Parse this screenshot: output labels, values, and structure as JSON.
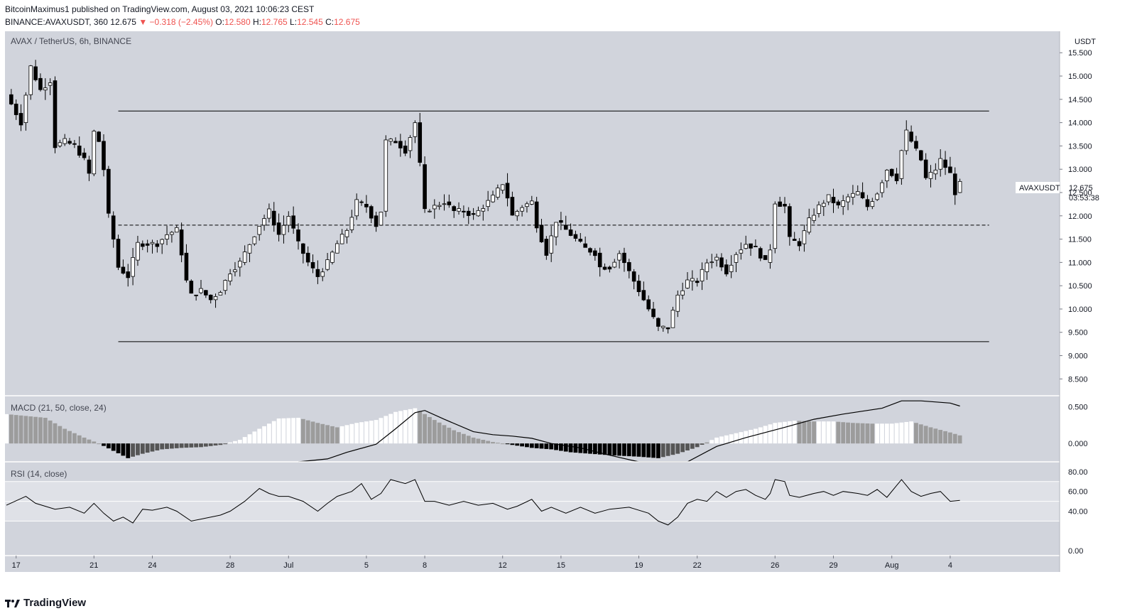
{
  "header": {
    "author": "BitcoinMaximus1",
    "published": "published on TradingView.com, August 03, 2021 10:06:23 CEST",
    "symbol": "BINANCE:AVAXUSDT, 360",
    "last": "12.675",
    "change": "▼ −0.318 (−2.45%)",
    "o_label": "O:",
    "o": "12.580",
    "h_label": "H:",
    "h": "12.765",
    "l_label": "L:",
    "l": "12.545",
    "c_label": "C:",
    "c": "12.675"
  },
  "footer": {
    "brand": "TradingView",
    "logo_icon": "tradingview-logo-icon"
  },
  "colors": {
    "background": "#d1d4dc",
    "candle_up": "#ffffff",
    "candle_down": "#000000",
    "line": "#000000",
    "hist_gray": "#9c9c9c",
    "hist_dark": "#555555"
  },
  "chart_data": {
    "type": "candlestick",
    "title": "AVAX / TetherUS, 6h, BINANCE",
    "currency": "USDT",
    "ylim": [
      8.2,
      15.9
    ],
    "yticks": [
      "15.500",
      "15.000",
      "14.500",
      "14.000",
      "13.500",
      "13.000",
      "12.500",
      "12.000",
      "11.500",
      "11.000",
      "10.500",
      "10.000",
      "9.500",
      "9.000",
      "8.500"
    ],
    "price_label": {
      "name": "AVAXUSDT",
      "value": "12.675",
      "countdown": "03:53:38"
    },
    "xticks": [
      {
        "label": "17",
        "t": 2
      },
      {
        "label": "21",
        "t": 18
      },
      {
        "label": "24",
        "t": 30
      },
      {
        "label": "28",
        "t": 46
      },
      {
        "label": "Jul",
        "t": 58
      },
      {
        "label": "5",
        "t": 74
      },
      {
        "label": "8",
        "t": 86
      },
      {
        "label": "12",
        "t": 102
      },
      {
        "label": "15",
        "t": 114
      },
      {
        "label": "19",
        "t": 130
      },
      {
        "label": "22",
        "t": 142
      },
      {
        "label": "26",
        "t": 158
      },
      {
        "label": "29",
        "t": 170
      },
      {
        "label": "Aug",
        "t": 182
      },
      {
        "label": "4",
        "t": 194
      }
    ],
    "levels": [
      {
        "name": "range-high",
        "value": 14.25,
        "style": "solid",
        "t0": 23,
        "t1": 202
      },
      {
        "name": "mid-range",
        "value": 11.8,
        "style": "dashed",
        "t0": 23,
        "t1": 202
      },
      {
        "name": "range-low",
        "value": 9.3,
        "style": "solid",
        "t0": 23,
        "t1": 202
      }
    ],
    "anchors": [
      [
        0,
        14.6
      ],
      [
        3,
        14.0
      ],
      [
        5,
        15.2
      ],
      [
        7,
        14.7
      ],
      [
        9,
        14.9
      ],
      [
        10,
        13.5
      ],
      [
        12,
        13.6
      ],
      [
        14,
        13.5
      ],
      [
        16,
        13.2
      ],
      [
        17,
        12.9
      ],
      [
        18,
        13.8
      ],
      [
        19,
        13.6
      ],
      [
        20,
        13.0
      ],
      [
        21,
        12.0
      ],
      [
        22,
        11.5
      ],
      [
        23,
        10.9
      ],
      [
        24,
        10.8
      ],
      [
        25,
        10.7
      ],
      [
        27,
        11.4
      ],
      [
        29,
        11.4
      ],
      [
        31,
        11.4
      ],
      [
        33,
        11.6
      ],
      [
        35,
        11.7
      ],
      [
        36,
        11.2
      ],
      [
        37,
        10.6
      ],
      [
        38,
        10.3
      ],
      [
        40,
        10.4
      ],
      [
        42,
        10.2
      ],
      [
        44,
        10.4
      ],
      [
        46,
        10.8
      ],
      [
        48,
        11.0
      ],
      [
        50,
        11.4
      ],
      [
        52,
        11.8
      ],
      [
        54,
        12.1
      ],
      [
        56,
        11.6
      ],
      [
        58,
        12.0
      ],
      [
        60,
        11.4
      ],
      [
        62,
        11.0
      ],
      [
        64,
        10.7
      ],
      [
        66,
        11.0
      ],
      [
        68,
        11.4
      ],
      [
        70,
        11.7
      ],
      [
        72,
        12.3
      ],
      [
        74,
        12.2
      ],
      [
        76,
        11.8
      ],
      [
        77,
        12.1
      ],
      [
        78,
        13.6
      ],
      [
        80,
        13.6
      ],
      [
        82,
        13.4
      ],
      [
        84,
        14.0
      ],
      [
        85,
        13.1
      ],
      [
        86,
        12.1
      ],
      [
        88,
        12.2
      ],
      [
        90,
        12.3
      ],
      [
        92,
        12.1
      ],
      [
        94,
        12.1
      ],
      [
        96,
        12.0
      ],
      [
        98,
        12.2
      ],
      [
        100,
        12.4
      ],
      [
        102,
        12.7
      ],
      [
        103,
        12.4
      ],
      [
        104,
        12.0
      ],
      [
        106,
        12.2
      ],
      [
        108,
        12.3
      ],
      [
        109,
        11.8
      ],
      [
        111,
        11.2
      ],
      [
        113,
        11.9
      ],
      [
        115,
        11.7
      ],
      [
        117,
        11.5
      ],
      [
        119,
        11.3
      ],
      [
        121,
        11.2
      ],
      [
        122,
        10.9
      ],
      [
        124,
        10.9
      ],
      [
        126,
        11.2
      ],
      [
        128,
        10.8
      ],
      [
        130,
        10.4
      ],
      [
        132,
        10.0
      ],
      [
        134,
        9.6
      ],
      [
        136,
        9.6
      ],
      [
        138,
        10.3
      ],
      [
        140,
        10.6
      ],
      [
        142,
        10.6
      ],
      [
        144,
        11.0
      ],
      [
        146,
        11.1
      ],
      [
        148,
        10.8
      ],
      [
        150,
        11.2
      ],
      [
        152,
        11.4
      ],
      [
        154,
        11.3
      ],
      [
        156,
        11.0
      ],
      [
        157,
        11.3
      ],
      [
        158,
        12.3
      ],
      [
        160,
        12.2
      ],
      [
        161,
        11.5
      ],
      [
        163,
        11.4
      ],
      [
        165,
        11.9
      ],
      [
        167,
        12.2
      ],
      [
        169,
        12.4
      ],
      [
        171,
        12.2
      ],
      [
        173,
        12.4
      ],
      [
        175,
        12.5
      ],
      [
        177,
        12.2
      ],
      [
        179,
        12.5
      ],
      [
        181,
        13.0
      ],
      [
        183,
        12.8
      ],
      [
        184,
        13.4
      ],
      [
        185,
        13.8
      ],
      [
        187,
        13.4
      ],
      [
        188,
        13.2
      ],
      [
        189,
        12.8
      ],
      [
        191,
        13.0
      ],
      [
        192,
        13.2
      ],
      [
        194,
        12.9
      ],
      [
        195,
        12.5
      ],
      [
        196,
        12.68
      ]
    ],
    "macd": {
      "label": "MACD (21, 50, close, 24)",
      "ylim": [
        -0.25,
        0.65
      ],
      "yticks": [
        "0.500",
        "0.000"
      ],
      "histogram_anchors": [
        [
          0,
          0.4
        ],
        [
          8,
          0.35
        ],
        [
          12,
          0.2
        ],
        [
          16,
          0.08
        ],
        [
          19,
          0.0
        ],
        [
          22,
          -0.1
        ],
        [
          25,
          -0.2
        ],
        [
          28,
          -0.14
        ],
        [
          32,
          -0.08
        ],
        [
          36,
          -0.06
        ],
        [
          40,
          -0.05
        ],
        [
          44,
          -0.02
        ],
        [
          48,
          0.05
        ],
        [
          52,
          0.2
        ],
        [
          56,
          0.34
        ],
        [
          60,
          0.35
        ],
        [
          64,
          0.28
        ],
        [
          68,
          0.22
        ],
        [
          72,
          0.28
        ],
        [
          76,
          0.32
        ],
        [
          80,
          0.43
        ],
        [
          84,
          0.48
        ],
        [
          88,
          0.32
        ],
        [
          92,
          0.18
        ],
        [
          96,
          0.08
        ],
        [
          100,
          0.02
        ],
        [
          104,
          -0.02
        ],
        [
          108,
          -0.06
        ],
        [
          112,
          -0.08
        ],
        [
          116,
          -0.12
        ],
        [
          120,
          -0.14
        ],
        [
          124,
          -0.16
        ],
        [
          130,
          -0.18
        ],
        [
          134,
          -0.2
        ],
        [
          138,
          -0.14
        ],
        [
          142,
          -0.05
        ],
        [
          146,
          0.08
        ],
        [
          150,
          0.14
        ],
        [
          154,
          0.2
        ],
        [
          158,
          0.28
        ],
        [
          162,
          0.31
        ],
        [
          166,
          0.3
        ],
        [
          170,
          0.3
        ],
        [
          174,
          0.28
        ],
        [
          178,
          0.27
        ],
        [
          182,
          0.27
        ],
        [
          186,
          0.3
        ],
        [
          190,
          0.22
        ],
        [
          194,
          0.15
        ],
        [
          196,
          0.11
        ]
      ],
      "macd_anchors": [
        [
          60,
          -0.28
        ],
        [
          66,
          -0.21
        ],
        [
          70,
          -0.12
        ],
        [
          76,
          -0.01
        ],
        [
          80,
          0.2
        ],
        [
          84,
          0.42
        ],
        [
          86,
          0.45
        ],
        [
          90,
          0.33
        ],
        [
          96,
          0.16
        ],
        [
          100,
          0.12
        ],
        [
          104,
          0.1
        ],
        [
          108,
          0.07
        ],
        [
          112,
          0.0
        ],
        [
          118,
          -0.06
        ],
        [
          124,
          -0.16
        ],
        [
          130,
          -0.26
        ],
        [
          132,
          -0.3
        ],
        [
          140,
          -0.34
        ],
        [
          146,
          -0.04
        ],
        [
          152,
          0.08
        ],
        [
          160,
          0.22
        ],
        [
          166,
          0.33
        ],
        [
          172,
          0.4
        ],
        [
          180,
          0.48
        ],
        [
          184,
          0.58
        ],
        [
          188,
          0.58
        ],
        [
          194,
          0.55
        ],
        [
          196,
          0.51
        ]
      ]
    },
    "rsi": {
      "label": "RSI (14, close)",
      "ylim": [
        -5,
        90
      ],
      "yticks": [
        "80.00",
        "60.00",
        "40.00",
        "0.00"
      ],
      "band": [
        30,
        70
      ],
      "midline": 50,
      "anchors": [
        [
          0,
          46
        ],
        [
          4,
          55
        ],
        [
          6,
          48
        ],
        [
          10,
          42
        ],
        [
          13,
          44
        ],
        [
          16,
          38
        ],
        [
          18,
          48
        ],
        [
          20,
          38
        ],
        [
          22,
          30
        ],
        [
          24,
          34
        ],
        [
          26,
          28
        ],
        [
          28,
          42
        ],
        [
          30,
          41
        ],
        [
          33,
          44
        ],
        [
          35,
          40
        ],
        [
          38,
          30
        ],
        [
          40,
          32
        ],
        [
          44,
          36
        ],
        [
          46,
          40
        ],
        [
          49,
          50
        ],
        [
          52,
          63
        ],
        [
          54,
          58
        ],
        [
          56,
          55
        ],
        [
          58,
          55
        ],
        [
          61,
          50
        ],
        [
          64,
          40
        ],
        [
          66,
          48
        ],
        [
          68,
          55
        ],
        [
          71,
          60
        ],
        [
          73,
          68
        ],
        [
          75,
          52
        ],
        [
          77,
          58
        ],
        [
          79,
          72
        ],
        [
          82,
          68
        ],
        [
          84,
          72
        ],
        [
          86,
          50
        ],
        [
          88,
          50
        ],
        [
          91,
          46
        ],
        [
          94,
          50
        ],
        [
          97,
          46
        ],
        [
          100,
          48
        ],
        [
          103,
          42
        ],
        [
          105,
          45
        ],
        [
          108,
          52
        ],
        [
          110,
          40
        ],
        [
          112,
          44
        ],
        [
          115,
          38
        ],
        [
          118,
          44
        ],
        [
          121,
          38
        ],
        [
          124,
          42
        ],
        [
          128,
          44
        ],
        [
          132,
          38
        ],
        [
          134,
          30
        ],
        [
          136,
          26
        ],
        [
          138,
          34
        ],
        [
          140,
          48
        ],
        [
          142,
          52
        ],
        [
          144,
          50
        ],
        [
          146,
          60
        ],
        [
          148,
          54
        ],
        [
          150,
          60
        ],
        [
          152,
          62
        ],
        [
          154,
          56
        ],
        [
          156,
          52
        ],
        [
          157,
          58
        ],
        [
          158,
          72
        ],
        [
          160,
          70
        ],
        [
          161,
          56
        ],
        [
          163,
          54
        ],
        [
          166,
          58
        ],
        [
          168,
          60
        ],
        [
          170,
          56
        ],
        [
          172,
          60
        ],
        [
          175,
          58
        ],
        [
          177,
          56
        ],
        [
          179,
          62
        ],
        [
          181,
          54
        ],
        [
          183,
          66
        ],
        [
          184,
          72
        ],
        [
          186,
          60
        ],
        [
          188,
          55
        ],
        [
          190,
          58
        ],
        [
          192,
          60
        ],
        [
          194,
          50
        ],
        [
          196,
          51
        ]
      ]
    }
  }
}
